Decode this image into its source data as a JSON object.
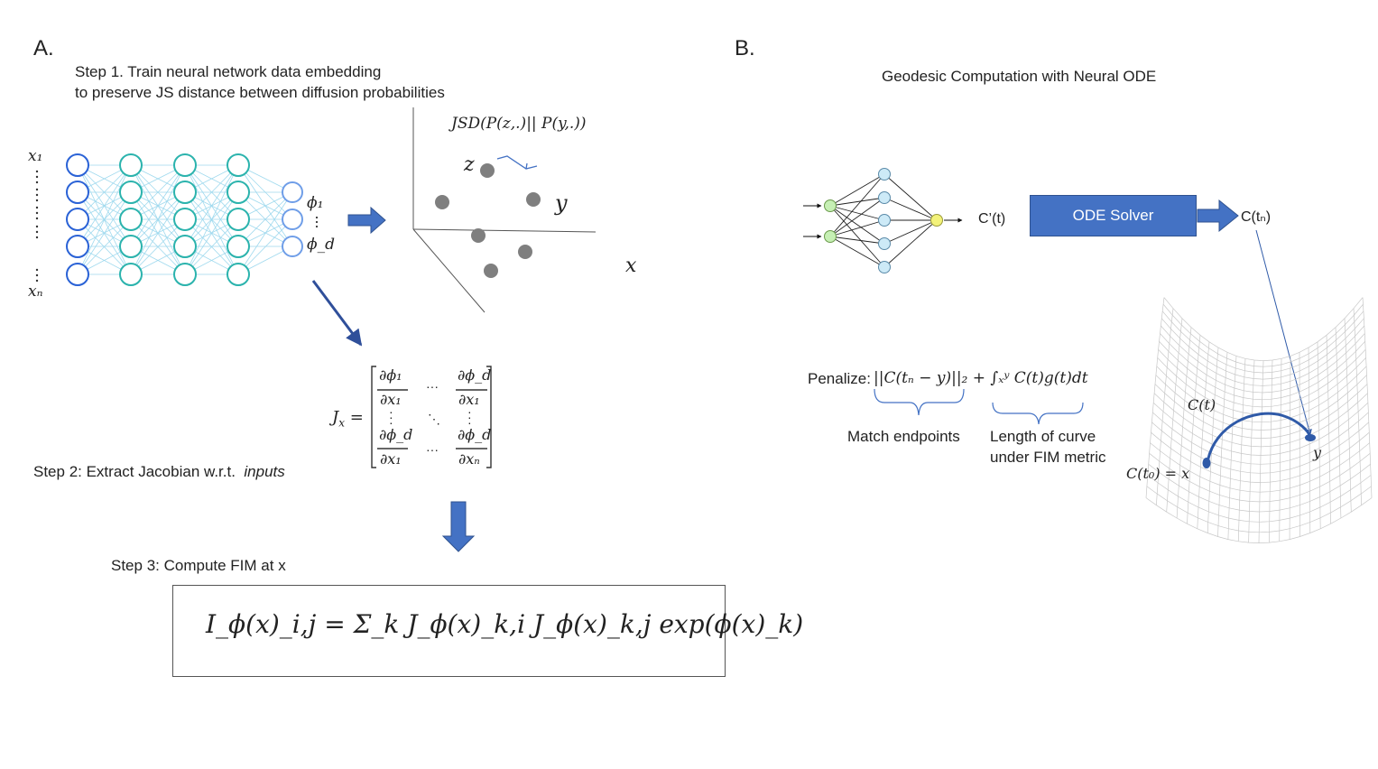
{
  "panel_a": {
    "label": "A.",
    "step1_line1": "Step 1. Train neural network data embedding",
    "step1_line2": "to preserve JS distance between diffusion probabilities",
    "input_top": "x₁",
    "input_bottom": "xₙ",
    "output_top": "ϕ₁",
    "output_bottom": "ϕ_d",
    "jsd_label": "JSD(P(z,.)|| P(y,.))",
    "point_z": "z",
    "point_y": "y",
    "axis_x": "x",
    "step2_prefix": "Step 2: Extract Jacobian w.r.t.",
    "step2_emph": "inputs",
    "jacobian_lhs": "J",
    "jacobian_sub": "x",
    "jacobian_eq": "=",
    "jacobian_phi_1": "∂ϕ₁",
    "jacobian_phi_d": "∂ϕ_d",
    "jacobian_x_1": "∂x₁",
    "jacobian_x_n": "∂xₙ",
    "step3": "Step 3: Compute FIM at x",
    "fim_formula": "I_ϕ(x)_i,j = Σ_k J_ϕ(x)_k,i J_ϕ(x)_k,j exp(ϕ(x)_k)"
  },
  "panel_b": {
    "label": "B.",
    "title": "Geodesic Computation with Neural ODE",
    "c_prime": "C’(t)",
    "ode_solver": "ODE Solver",
    "c_tn": "C(tₙ)",
    "penalize_label": "Penalize:",
    "penalize_formula": "||C(tₙ − y)||₂ + ∫ₓʸ C(t)g(t)dt",
    "match_endpoints": "Match endpoints",
    "length_line1": "Length of curve",
    "length_line2": "under FIM metric",
    "curve_label": "C(t)",
    "start_label": "C(t₀) = x",
    "end_label": "y"
  },
  "colors": {
    "arrow_blue": "#4472c4",
    "node_blue": "#2a62d6",
    "node_teal": "#2bb3ad",
    "node_light": "#6f9ee8",
    "point_gray": "#7f7f7f",
    "ode_node_green": "#c6efb4",
    "ode_node_blue": "#cdeaf7",
    "ode_node_yellow": "#f3f27a"
  }
}
